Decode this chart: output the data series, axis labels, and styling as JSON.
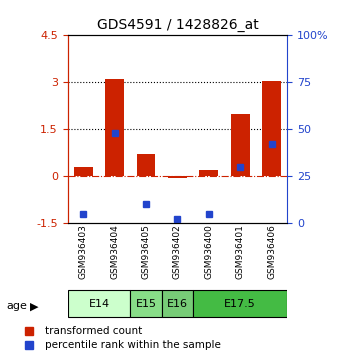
{
  "title": "GDS4591 / 1428826_at",
  "samples": [
    "GSM936403",
    "GSM936404",
    "GSM936405",
    "GSM936402",
    "GSM936400",
    "GSM936401",
    "GSM936406"
  ],
  "red_values": [
    0.3,
    3.1,
    0.7,
    -0.05,
    0.2,
    2.0,
    3.05
  ],
  "blue_values_pct": [
    5,
    48,
    10,
    2,
    5,
    30,
    42
  ],
  "age_groups": [
    {
      "label": "E14",
      "start": 0,
      "end": 2,
      "color": "#ccffcc"
    },
    {
      "label": "E15",
      "start": 2,
      "end": 3,
      "color": "#88dd88"
    },
    {
      "label": "E16",
      "start": 3,
      "end": 4,
      "color": "#77cc77"
    },
    {
      "label": "E17.5",
      "start": 4,
      "end": 7,
      "color": "#44bb44"
    }
  ],
  "ylim_left": [
    -1.5,
    4.5
  ],
  "ylim_right": [
    0,
    100
  ],
  "yticks_left": [
    -1.5,
    0.0,
    1.5,
    3.0,
    4.5
  ],
  "ytick_labels_left": [
    "-1.5",
    "0",
    "1.5",
    "3",
    "4.5"
  ],
  "yticks_right": [
    0,
    25,
    50,
    75,
    100
  ],
  "ytick_labels_right": [
    "0",
    "25",
    "50",
    "75",
    "100%"
  ],
  "red_color": "#cc2200",
  "blue_color": "#2244cc",
  "bar_width": 0.6
}
